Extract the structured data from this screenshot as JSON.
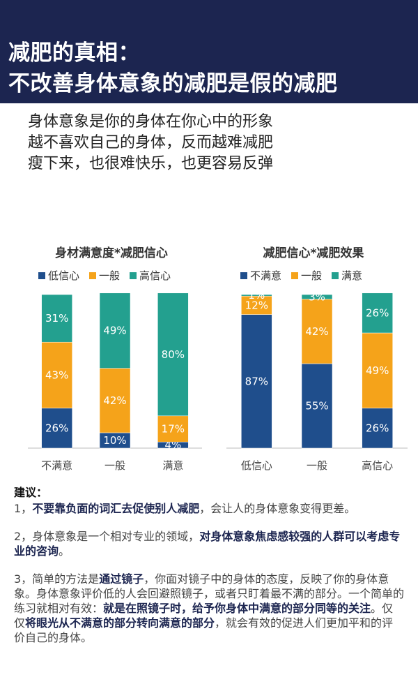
{
  "header": {
    "title_line1": "减肥的真相：",
    "title_line2": "不改善身体意象的减肥是假的减肥"
  },
  "intro": {
    "line1": "身体意象是你的身体在你心中的形象",
    "line2": "越不喜欢自己的身体，反而越难减肥",
    "line3": "瘦下来，也很难快乐，也更容易反弹"
  },
  "colors": {
    "dark_blue": "#1f4e8c",
    "orange": "#f5a31a",
    "teal": "#23a08f",
    "header_bg": "#1c2550"
  },
  "chart_data": [
    {
      "type": "bar",
      "stacked": true,
      "title": "身材满意度*减肥信心",
      "categories": [
        "不满意",
        "一般",
        "满意"
      ],
      "series": [
        {
          "name": "低信心",
          "values": [
            26,
            10,
            4
          ],
          "labels": [
            "26%",
            "10%",
            "4%"
          ]
        },
        {
          "name": "一般",
          "values": [
            43,
            42,
            17
          ],
          "labels": [
            "43%",
            "42%",
            "17%"
          ]
        },
        {
          "name": "高信心",
          "values": [
            31,
            49,
            80
          ],
          "labels": [
            "31%",
            "49%",
            "80%"
          ]
        }
      ],
      "ylim": [
        0,
        100
      ]
    },
    {
      "type": "bar",
      "stacked": true,
      "title": "减肥信心*减肥效果",
      "categories": [
        "低信心",
        "一般",
        "高信心"
      ],
      "series": [
        {
          "name": "不满意",
          "values": [
            87,
            55,
            26
          ],
          "labels": [
            "87%",
            "55%",
            "26%"
          ]
        },
        {
          "name": "一般",
          "values": [
            12,
            42,
            49
          ],
          "labels": [
            "12%",
            "42%",
            "49%"
          ]
        },
        {
          "name": "满意",
          "values": [
            1,
            3,
            26
          ],
          "labels": [
            "1%",
            "3%",
            "26%"
          ]
        }
      ],
      "ylim": [
        0,
        100
      ]
    }
  ],
  "advice": {
    "head": "建议：",
    "p1_a": "1，",
    "p1_b": "不要靠负面的词汇去促使别人减肥",
    "p1_c": "，会让人的身体意象变得更差。",
    "p2_a": "2，身体意象是一个相对专业的领域，",
    "p2_b": "对身体意象焦虑感较强的人群可以考虑专业的咨询",
    "p2_c": "。",
    "p3_a": "3，简单的方法是",
    "p3_b": "通过镜子",
    "p3_c": "，你面对镜子中的身体的态度，反映了你的身体意象。身体意象评价低的人会回避照镜子，或者只盯着最不满的部分。一个简单的练习就相对有效：",
    "p3_d": "就是在照镜子时，给予你身体中满意的部分同等的关注",
    "p3_e": "。仅仅",
    "p3_f": "将眼光从不满意的部分转向满意的部分",
    "p3_g": "，就会有效的促进人们更加平和的评价自己的身体。"
  }
}
